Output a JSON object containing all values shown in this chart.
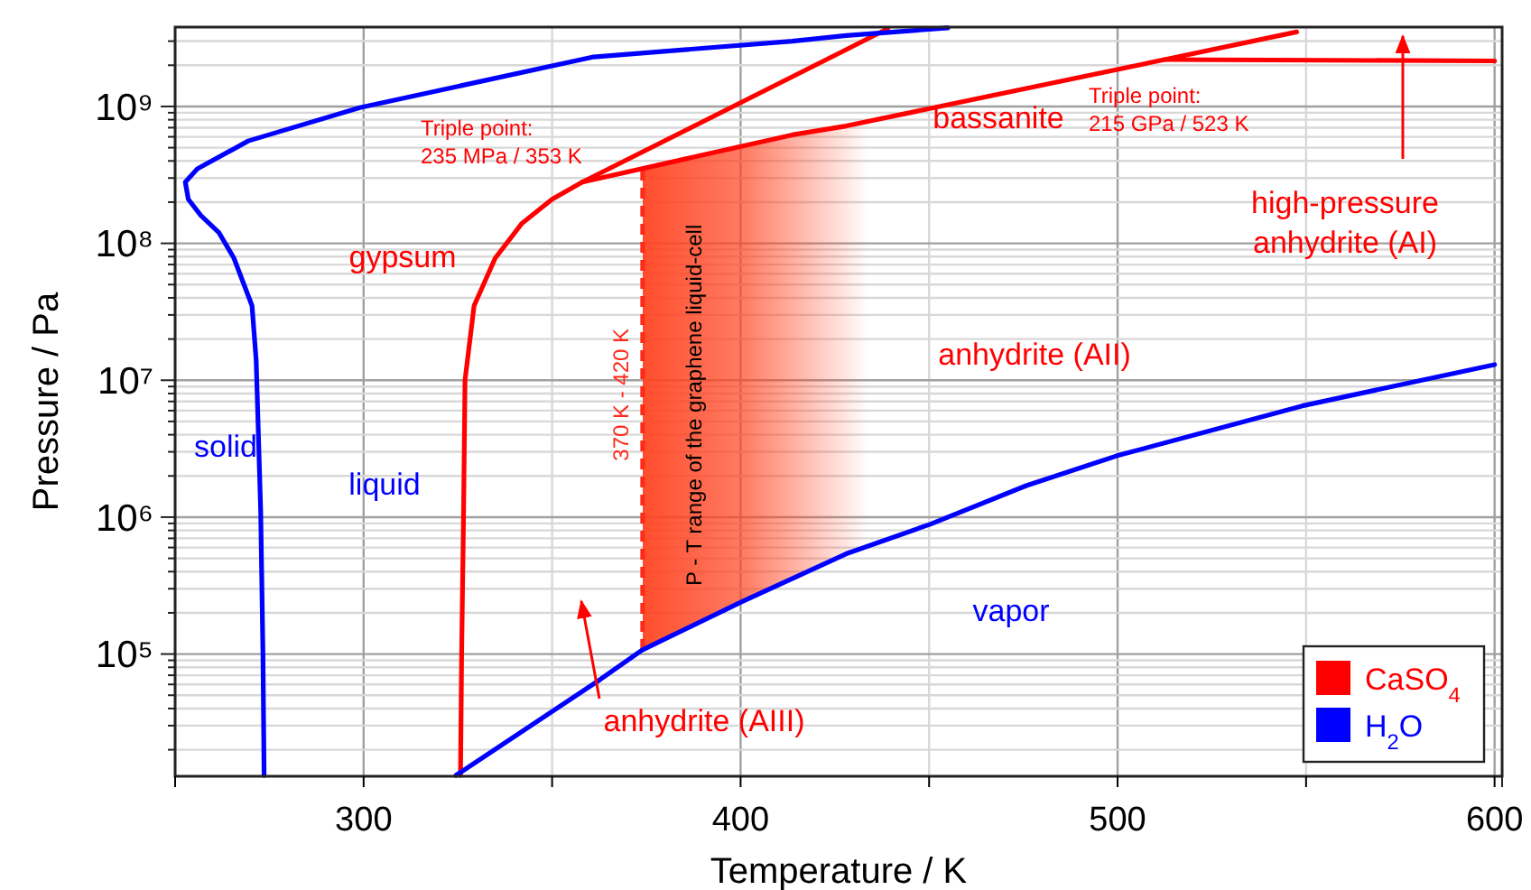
{
  "chart_data": {
    "type": "line",
    "xlabel": "Temperature / K",
    "ylabel": "Pressure / Pa",
    "log": "y",
    "grid": true,
    "legend": "bottom right",
    "line_style": "solid",
    "marker": "none",
    "xlim": [
      250,
      602
    ],
    "ylim": [
      12800,
      3800000000
    ],
    "xticks": [
      {
        "value": 250,
        "label": null
      },
      300,
      {
        "value": 350,
        "label": null
      },
      400,
      {
        "value": 450,
        "label": null
      },
      500,
      {
        "value": 550,
        "label": null
      },
      600
    ],
    "yticks": [
      {
        "value": 20000,
        "label": null
      },
      {
        "value": 30000,
        "label": null
      },
      {
        "value": 40000,
        "label": null
      },
      {
        "value": 50000,
        "label": null
      },
      {
        "value": 60000,
        "label": null
      },
      {
        "value": 70000,
        "label": null
      },
      {
        "value": 80000,
        "label": null
      },
      {
        "value": 90000,
        "label": null
      },
      {
        "value": 100000,
        "label": "10⁵"
      },
      {
        "value": 200000,
        "label": null
      },
      {
        "value": 300000,
        "label": null
      },
      {
        "value": 400000,
        "label": null
      },
      {
        "value": 500000,
        "label": null
      },
      {
        "value": 600000,
        "label": null
      },
      {
        "value": 700000,
        "label": null
      },
      {
        "value": 800000,
        "label": null
      },
      {
        "value": 900000,
        "label": null
      },
      {
        "value": 1000000,
        "label": "10⁶"
      },
      {
        "value": 2000000,
        "label": null
      },
      {
        "value": 3000000,
        "label": null
      },
      {
        "value": 4000000,
        "label": null
      },
      {
        "value": 5000000,
        "label": null
      },
      {
        "value": 6000000,
        "label": null
      },
      {
        "value": 7000000,
        "label": null
      },
      {
        "value": 8000000,
        "label": null
      },
      {
        "value": 9000000,
        "label": null
      },
      {
        "value": 10000000,
        "label": "10⁷"
      },
      {
        "value": 20000000,
        "label": null
      },
      {
        "value": 30000000,
        "label": null
      },
      {
        "value": 40000000,
        "label": null
      },
      {
        "value": 50000000,
        "label": null
      },
      {
        "value": 60000000,
        "label": null
      },
      {
        "value": 70000000,
        "label": null
      },
      {
        "value": 80000000,
        "label": null
      },
      {
        "value": 90000000,
        "label": null
      },
      {
        "value": 100000000,
        "label": "10⁸"
      },
      {
        "value": 200000000,
        "label": null
      },
      {
        "value": 300000000,
        "label": null
      },
      {
        "value": 400000000,
        "label": null
      },
      {
        "value": 500000000,
        "label": null
      },
      {
        "value": 600000000,
        "label": null
      },
      {
        "value": 700000000,
        "label": null
      },
      {
        "value": 800000000,
        "label": null
      },
      {
        "value": 900000000,
        "label": null
      },
      {
        "value": 1000000000,
        "label": "10⁹"
      },
      {
        "value": 2000000000,
        "label": null
      },
      {
        "value": 3000000000,
        "label": null
      }
    ],
    "series": [
      {
        "name": "CaSO$_{4}$",
        "color": "#ff0000",
        "x": [
          325.7,
          326,
          326.5,
          326.9,
          329.3,
          334.9,
          342,
          350,
          358,
          428,
          439
        ],
        "values": [
          13000,
          100000,
          1000000,
          10000000,
          35000000,
          78000000,
          140000000,
          210000000,
          280000000,
          2600000000,
          3700000000
        ]
      },
      {
        "color": "#ff0000",
        "x": [
          358,
          413.7,
          428,
          512.5,
          547.5
        ],
        "values": [
          280000000,
          620000000,
          720000000,
          2200000000,
          3500000000
        ]
      },
      {
        "color": "#ff0000",
        "x": [
          512.5,
          600
        ],
        "values": [
          2200000000,
          2150000000
        ]
      },
      {
        "name": "H$_{2}$O",
        "color": "#0000ff",
        "x": [
          273.6,
          273.3,
          272.7,
          271.5,
          270.4,
          265.6,
          261.6,
          256.8,
          253.5,
          252.7,
          255.9,
          269.4,
          299,
          361,
          413.7,
          428,
          455
        ],
        "values": [
          13000,
          100000,
          1100000,
          14000000,
          35000000,
          78000000,
          120000000,
          160000000,
          210000000,
          280000000,
          350000000,
          560000000,
          980000000,
          2300000000,
          3000000000,
          3300000000,
          3750000000
        ]
      },
      {
        "color": "#0000ff",
        "x": [
          324.5,
          362.7,
          373.9,
          400.2,
          428,
          450.4,
          475.8,
          499.7,
          549,
          600
        ],
        "values": [
          13000,
          65000,
          107000,
          240000,
          540000,
          890000,
          1700000,
          2800000,
          6500000,
          13000000
        ]
      }
    ],
    "bands": [
      {
        "axis": "x",
        "from": 374,
        "to": 434,
        "label": "P - T range of the graphene liquid-cell",
        "color": "#ff4422"
      }
    ],
    "ref_lines": [
      {
        "axis": "x",
        "value": 374,
        "label": "370 K - 420 K",
        "color": "#ff2a1a",
        "line_style": "dashed"
      }
    ],
    "annotations": [
      "Triple point:\n235 MPa / 353 K",
      "Triple point:\n215 GPa / 523 K",
      "gypsum",
      "bassanite",
      "anhydrite (AII)",
      "high-pressure\nanhydrite (AI)",
      "anhydrite (AIII)",
      "solid",
      "liquid",
      "vapor"
    ]
  }
}
